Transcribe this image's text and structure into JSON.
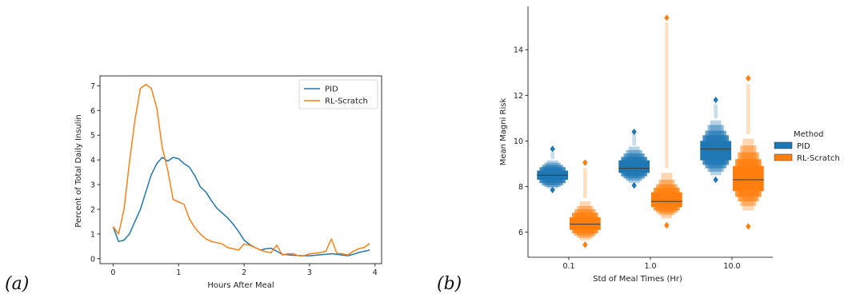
{
  "panels": {
    "a": "(a)",
    "b": "(b)"
  },
  "chart_data": [
    {
      "type": "line",
      "xlabel": "Hours After Meal",
      "ylabel": "Percent of Total Daily Insulin",
      "xlim": [
        -0.2,
        4.1
      ],
      "ylim": [
        -0.2,
        7.4
      ],
      "xticks": [
        0,
        1,
        2,
        3,
        4
      ],
      "yticks": [
        0,
        1,
        2,
        3,
        4,
        5,
        6,
        7
      ],
      "grid": false,
      "legend": "top-right",
      "x": [
        0.0,
        0.083,
        0.167,
        0.25,
        0.333,
        0.417,
        0.5,
        0.583,
        0.667,
        0.75,
        0.833,
        0.917,
        1.0,
        1.083,
        1.167,
        1.25,
        1.333,
        1.417,
        1.5,
        1.583,
        1.667,
        1.75,
        1.833,
        1.917,
        2.0,
        2.083,
        2.167,
        2.25,
        2.333,
        2.417,
        2.5,
        2.583,
        2.667,
        2.75,
        2.833,
        2.917,
        3.0,
        3.083,
        3.167,
        3.25,
        3.333,
        3.417,
        3.5,
        3.583,
        3.667,
        3.75,
        3.833,
        3.917
      ],
      "series": [
        {
          "name": "PID",
          "color": "#1f77b4",
          "values": [
            1.3,
            0.7,
            0.75,
            1.0,
            1.5,
            2.0,
            2.7,
            3.4,
            3.85,
            4.1,
            3.95,
            4.1,
            4.05,
            3.85,
            3.7,
            3.35,
            2.9,
            2.7,
            2.35,
            2.05,
            1.85,
            1.65,
            1.4,
            1.1,
            0.75,
            0.58,
            0.45,
            0.35,
            0.4,
            0.42,
            0.3,
            0.18,
            0.16,
            0.14,
            0.13,
            0.12,
            0.12,
            0.14,
            0.16,
            0.18,
            0.2,
            0.18,
            0.15,
            0.12,
            0.18,
            0.25,
            0.3,
            0.35
          ]
        },
        {
          "name": "RL-Scratch",
          "color": "#ff7f0e",
          "values": [
            1.3,
            1.0,
            2.0,
            3.9,
            5.6,
            6.9,
            7.05,
            6.9,
            6.1,
            4.5,
            3.6,
            2.4,
            2.3,
            2.2,
            1.6,
            1.25,
            1.0,
            0.8,
            0.7,
            0.65,
            0.6,
            0.45,
            0.4,
            0.35,
            0.6,
            0.55,
            0.45,
            0.35,
            0.28,
            0.25,
            0.55,
            0.15,
            0.2,
            0.2,
            0.12,
            0.12,
            0.2,
            0.22,
            0.25,
            0.3,
            0.8,
            0.22,
            0.2,
            0.15,
            0.3,
            0.4,
            0.45,
            0.62
          ]
        }
      ]
    },
    {
      "type": "boxen",
      "xlabel": "Std of Meal Times (Hr)",
      "ylabel": "Mean Magni Risk",
      "categories": [
        "0.1",
        "1.0",
        "10.0"
      ],
      "ylim": [
        4.9,
        15.9
      ],
      "yticks": [
        6,
        8,
        10,
        12,
        14
      ],
      "grid": false,
      "legend": {
        "title": "Method",
        "placement": "right"
      },
      "series": [
        {
          "name": "PID",
          "color": "#1f77b4",
          "groups": [
            {
              "median": 8.5,
              "levels": [
                [
                  8.3,
                  8.7
                ],
                [
                  8.15,
                  8.85
                ],
                [
                  8.05,
                  8.95
                ],
                [
                  7.98,
                  9.05
                ],
                [
                  7.92,
                  9.15
                ]
              ],
              "tail": [
                9.2,
                9.5
              ],
              "outliers": [
                9.65,
                7.85
              ]
            },
            {
              "median": 8.8,
              "levels": [
                [
                  8.6,
                  9.15
                ],
                [
                  8.45,
                  9.3
                ],
                [
                  8.35,
                  9.45
                ],
                [
                  8.25,
                  9.6
                ],
                [
                  8.15,
                  9.75
                ]
              ],
              "tail": [
                9.8,
                10.3
              ],
              "outliers": [
                10.4,
                8.05
              ]
            },
            {
              "median": 9.65,
              "levels": [
                [
                  9.15,
                  10.0
                ],
                [
                  8.95,
                  10.25
                ],
                [
                  8.8,
                  10.45
                ],
                [
                  8.65,
                  10.7
                ],
                [
                  8.5,
                  10.9
                ]
              ],
              "tail": [
                11.0,
                11.6
              ],
              "outliers": [
                11.8,
                8.3
              ]
            }
          ]
        },
        {
          "name": "RL-Scratch",
          "color": "#ff7f0e",
          "groups": [
            {
              "median": 6.35,
              "levels": [
                [
                  6.1,
                  6.65
                ],
                [
                  5.95,
                  6.85
                ],
                [
                  5.85,
                  7.0
                ],
                [
                  5.75,
                  7.15
                ],
                [
                  5.65,
                  7.35
                ]
              ],
              "tail": [
                7.5,
                8.8
              ],
              "outliers": [
                9.05,
                5.45
              ]
            },
            {
              "median": 7.35,
              "levels": [
                [
                  7.1,
                  7.75
                ],
                [
                  6.95,
                  7.95
                ],
                [
                  6.85,
                  8.1
                ],
                [
                  6.75,
                  8.3
                ],
                [
                  6.6,
                  8.6
                ]
              ],
              "tail": [
                8.8,
                15.2
              ],
              "outliers": [
                15.4,
                6.3
              ]
            },
            {
              "median": 8.3,
              "levels": [
                [
                  7.8,
                  8.9
                ],
                [
                  7.55,
                  9.2
                ],
                [
                  7.35,
                  9.5
                ],
                [
                  7.15,
                  9.8
                ],
                [
                  6.95,
                  10.1
                ]
              ],
              "tail": [
                10.3,
                12.5
              ],
              "outliers": [
                12.75,
                6.25
              ]
            }
          ]
        }
      ]
    }
  ]
}
